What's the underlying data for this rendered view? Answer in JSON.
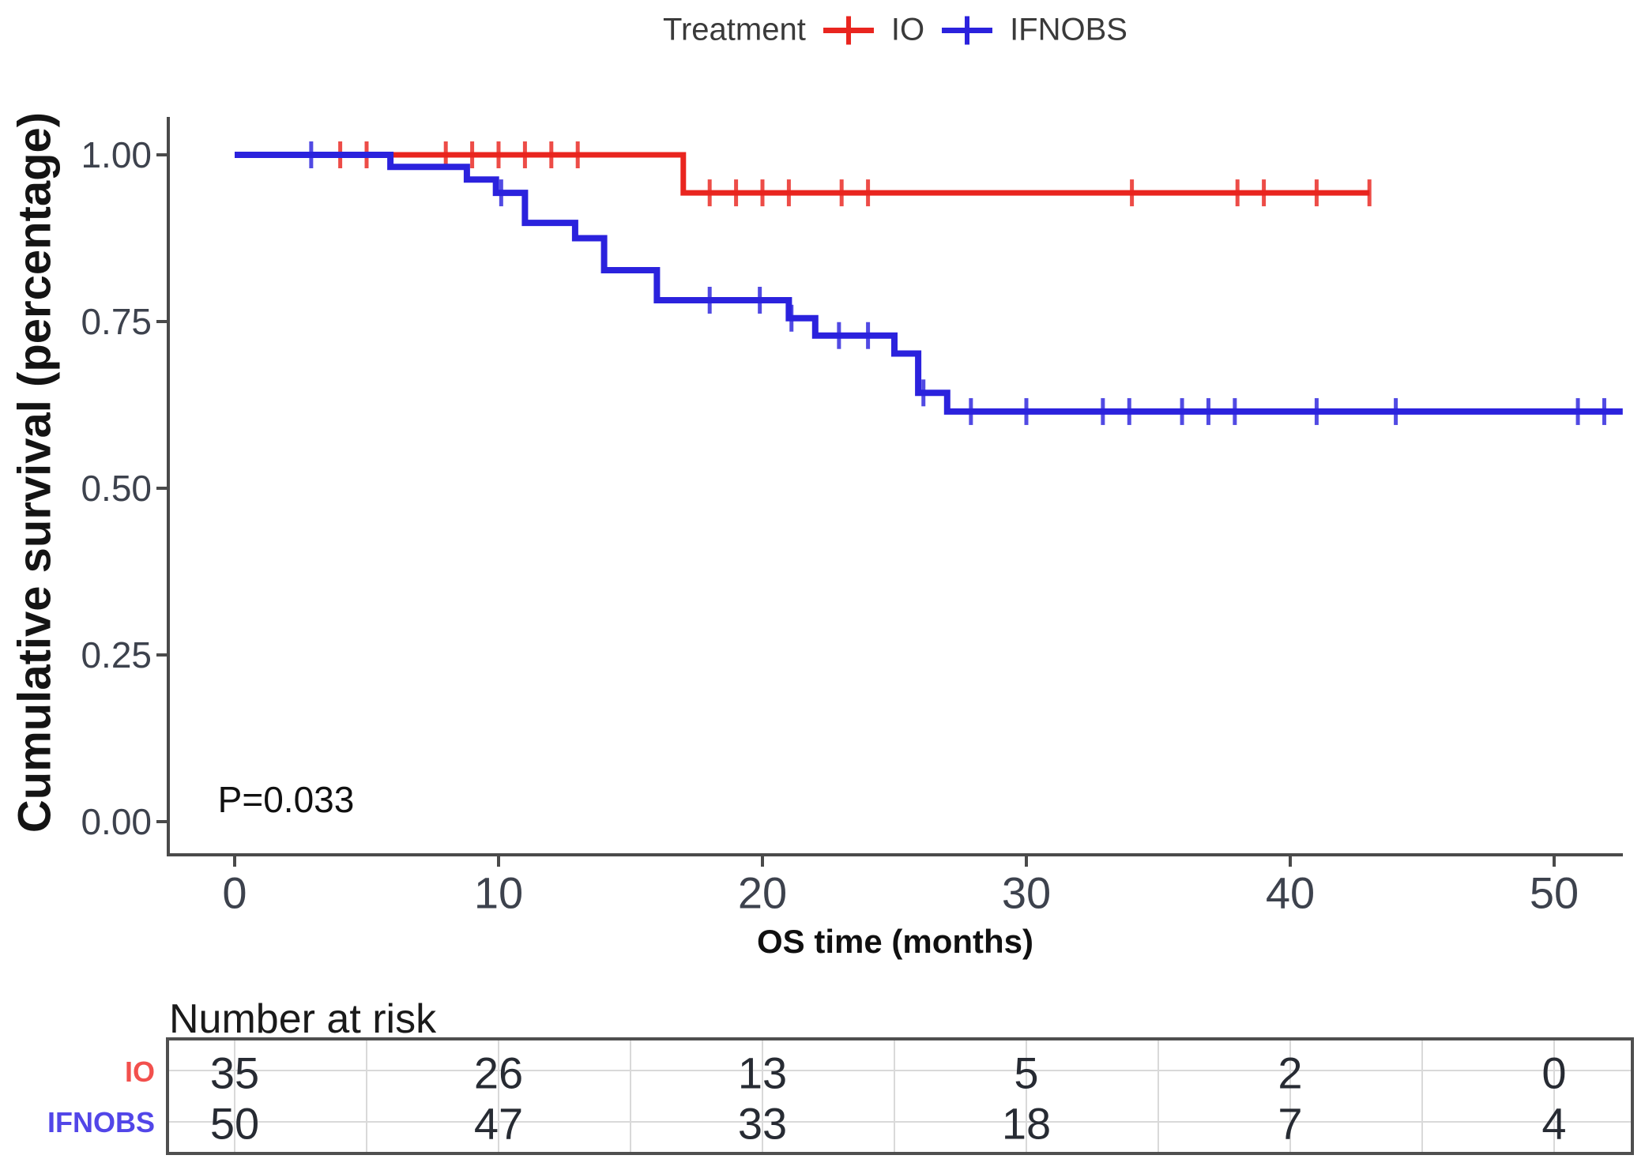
{
  "title_legend": {
    "label": "Treatment",
    "series": [
      {
        "name": "IO"
      },
      {
        "name": "IFNOBS"
      }
    ]
  },
  "colors": {
    "io": "#e9251f",
    "ifnobs": "#2b22dd",
    "io_label": "#f2504d",
    "ifnobs_label": "#5246e8",
    "axis": "#4a4a4a",
    "grid": "#d9d9d9",
    "table_border": "#4f4f4f"
  },
  "y_axis": {
    "title": "Cumulative survival (percentage)",
    "ticks": [
      {
        "label": "1.00",
        "value": 1.0
      },
      {
        "label": "0.75",
        "value": 0.75
      },
      {
        "label": "0.50",
        "value": 0.5
      },
      {
        "label": "0.25",
        "value": 0.25
      },
      {
        "label": "0.00",
        "value": 0.0
      }
    ]
  },
  "x_axis": {
    "title": "OS time (months)",
    "ticks": [
      {
        "label": "0",
        "value": 0
      },
      {
        "label": "10",
        "value": 10
      },
      {
        "label": "20",
        "value": 20
      },
      {
        "label": "30",
        "value": 30
      },
      {
        "label": "40",
        "value": 40
      },
      {
        "label": "50",
        "value": 50
      }
    ]
  },
  "annotation": {
    "p_value": "P=0.033"
  },
  "risk_table": {
    "heading": "Number at risk",
    "time_points": [
      0,
      10,
      20,
      30,
      40,
      50
    ],
    "rows": [
      {
        "label": "IO",
        "counts": [
          "35",
          "26",
          "13",
          "5",
          "2",
          "0"
        ]
      },
      {
        "label": "IFNOBS",
        "counts": [
          "50",
          "47",
          "33",
          "18",
          "7",
          "4"
        ]
      }
    ]
  },
  "chart_data": {
    "type": "line",
    "subtype": "kaplan-meier-step",
    "title": "",
    "xlabel": "OS time (months)",
    "ylabel": "Cumulative survival (percentage)",
    "xlim": [
      -2.5,
      52.8
    ],
    "ylim": [
      0,
      1.05
    ],
    "grid": false,
    "legend_position": "top",
    "p_value": 0.033,
    "series": [
      {
        "name": "IO",
        "color": "#e9251f",
        "points": [
          [
            0,
            1.0
          ],
          [
            17,
            1.0
          ],
          [
            17,
            0.943
          ],
          [
            43,
            0.943
          ]
        ],
        "censors": [
          [
            4,
            1.0
          ],
          [
            5,
            1.0
          ],
          [
            8,
            1.0
          ],
          [
            9,
            1.0
          ],
          [
            10,
            1.0
          ],
          [
            11,
            1.0
          ],
          [
            12,
            1.0
          ],
          [
            13,
            1.0
          ],
          [
            18,
            0.943
          ],
          [
            19,
            0.943
          ],
          [
            20,
            0.943
          ],
          [
            21,
            0.943
          ],
          [
            23,
            0.943
          ],
          [
            24,
            0.943
          ],
          [
            34,
            0.943
          ],
          [
            38,
            0.943
          ],
          [
            39,
            0.943
          ],
          [
            41,
            0.943
          ],
          [
            43,
            0.943
          ]
        ]
      },
      {
        "name": "IFNOBS",
        "color": "#2b22dd",
        "points": [
          [
            0,
            1.0
          ],
          [
            5.9,
            1.0
          ],
          [
            5.9,
            0.982
          ],
          [
            8.8,
            0.982
          ],
          [
            8.8,
            0.963
          ],
          [
            9.9,
            0.963
          ],
          [
            9.9,
            0.943
          ],
          [
            11,
            0.943
          ],
          [
            11,
            0.898
          ],
          [
            12.9,
            0.898
          ],
          [
            12.9,
            0.875
          ],
          [
            14,
            0.875
          ],
          [
            14,
            0.827
          ],
          [
            16,
            0.827
          ],
          [
            16,
            0.782
          ],
          [
            21,
            0.782
          ],
          [
            21,
            0.755
          ],
          [
            22,
            0.755
          ],
          [
            22,
            0.729
          ],
          [
            25,
            0.729
          ],
          [
            25,
            0.702
          ],
          [
            25.9,
            0.702
          ],
          [
            25.9,
            0.643
          ],
          [
            27,
            0.643
          ],
          [
            27,
            0.615
          ],
          [
            52.6,
            0.615
          ]
        ],
        "censors": [
          [
            2.9,
            1.0
          ],
          [
            10.1,
            0.943
          ],
          [
            18,
            0.782
          ],
          [
            19.9,
            0.782
          ],
          [
            21.1,
            0.755
          ],
          [
            22.9,
            0.729
          ],
          [
            24,
            0.729
          ],
          [
            26.1,
            0.643
          ],
          [
            27.9,
            0.615
          ],
          [
            30,
            0.615
          ],
          [
            32.9,
            0.615
          ],
          [
            33.9,
            0.615
          ],
          [
            35.9,
            0.615
          ],
          [
            36.9,
            0.615
          ],
          [
            37.9,
            0.615
          ],
          [
            41,
            0.615
          ],
          [
            44,
            0.615
          ],
          [
            50.9,
            0.615
          ],
          [
            51.9,
            0.615
          ]
        ]
      }
    ]
  }
}
